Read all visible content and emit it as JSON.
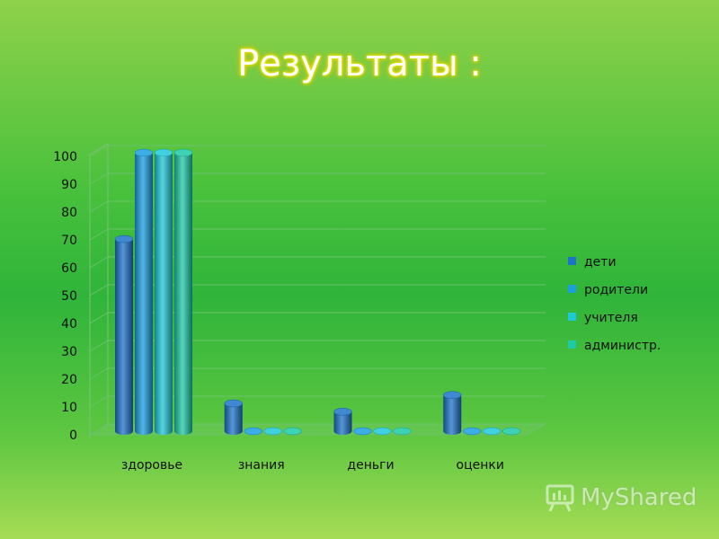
{
  "slide": {
    "title": "Результаты :",
    "watermark": "MyShared"
  },
  "colors": {
    "series": [
      "#1e73c8",
      "#1a9ee0",
      "#1ec8d8",
      "#1ccaa6"
    ]
  },
  "chart_data": {
    "type": "bar",
    "categories": [
      "здоровье",
      "знания",
      "деньги",
      "оценки"
    ],
    "series": [
      {
        "name": "дети",
        "values": [
          69,
          10,
          7,
          13
        ]
      },
      {
        "name": "родители",
        "values": [
          100,
          0,
          0,
          0
        ]
      },
      {
        "name": "учителя",
        "values": [
          100,
          0,
          0,
          0
        ]
      },
      {
        "name": "администр.",
        "values": [
          100,
          0,
          0,
          0
        ]
      }
    ],
    "yticks": [
      "0",
      "10",
      "20",
      "30",
      "40",
      "50",
      "60",
      "70",
      "80",
      "90",
      "100"
    ],
    "ylim": [
      0,
      100
    ],
    "grid": true,
    "legend": "right",
    "style": "3d-cylinder"
  }
}
